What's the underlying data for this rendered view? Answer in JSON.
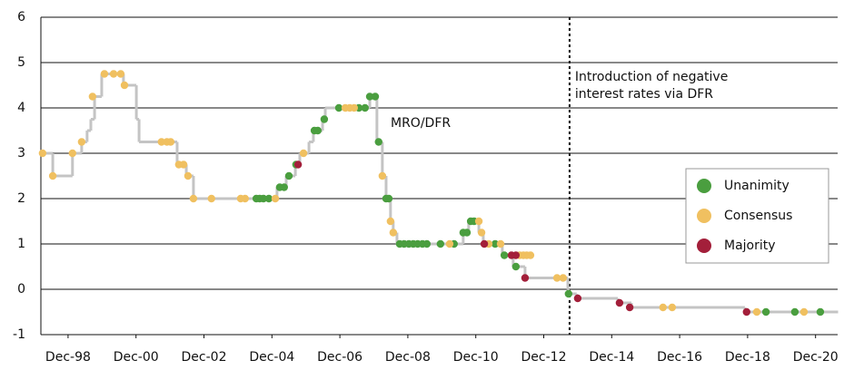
{
  "chart_data": {
    "type": "line",
    "annotation": [
      "Introduction of negative",
      "interest rates via DFR"
    ],
    "annotation_x": 2013.68,
    "xlim": [
      1998.12,
      2021.57
    ],
    "ylim": [
      -1,
      6
    ],
    "yticks": [
      -1,
      0,
      1,
      2,
      3,
      4,
      5,
      6
    ],
    "xticks": [
      {
        "value": 1998.92,
        "label": "Dec-98"
      },
      {
        "value": 2000.92,
        "label": "Dec-00"
      },
      {
        "value": 2002.92,
        "label": "Dec-02"
      },
      {
        "value": 2004.92,
        "label": "Dec-04"
      },
      {
        "value": 2006.92,
        "label": "Dec-06"
      },
      {
        "value": 2008.92,
        "label": "Dec-08"
      },
      {
        "value": 2010.92,
        "label": "Dec-10"
      },
      {
        "value": 2012.92,
        "label": "Dec-12"
      },
      {
        "value": 2014.92,
        "label": "Dec-14"
      },
      {
        "value": 2016.92,
        "label": "Dec-16"
      },
      {
        "value": 2018.92,
        "label": "Dec-18"
      },
      {
        "value": 2020.92,
        "label": "Dec-20"
      }
    ],
    "grid": true,
    "legend": "right",
    "series": [
      {
        "name": "MRO/DFR",
        "type": "line",
        "color": "#c4c4c4",
        "x": [
          1998.12,
          1998.47,
          1999.05,
          1999.32,
          1999.48,
          1999.59,
          1999.7,
          1999.91,
          2000.55,
          2000.93,
          2001.01,
          2002.13,
          2002.4,
          2002.61,
          2005.07,
          2005.34,
          2005.61,
          2005.74,
          2006.01,
          2006.14,
          2006.41,
          2006.49,
          2007.8,
          2008.01,
          2008.17,
          2008.28,
          2008.41,
          2008.49,
          2008.6,
          2010.55,
          2010.71,
          2011.01,
          2011.14,
          2011.7,
          2012.02,
          2012.37,
          2013.63,
          2013.65,
          2013.89,
          2015.1,
          2015.5,
          2018.84,
          2021.57
        ],
        "values": [
          3,
          2.5,
          3,
          3.25,
          3.5,
          3.75,
          4.25,
          4.75,
          4.5,
          3.75,
          3.25,
          2.75,
          2.5,
          2,
          2.25,
          2.5,
          2.75,
          3,
          3.25,
          3.5,
          3.75,
          4,
          4.25,
          3.25,
          2.5,
          2,
          1.5,
          1.25,
          1,
          1.25,
          1.5,
          1.25,
          1,
          0.75,
          0.5,
          0.25,
          0,
          -0.1,
          -0.2,
          -0.3,
          -0.4,
          -0.5,
          -0.5
        ]
      },
      {
        "name": "Unanimity",
        "type": "scatter",
        "color": "#4a9e3f",
        "x": [
          2004.46,
          2004.56,
          2004.67,
          2004.83,
          2005.15,
          2005.28,
          2005.42,
          2005.63,
          2006.17,
          2006.27,
          2006.46,
          2006.89,
          2007.48,
          2007.66,
          2007.8,
          2007.96,
          2008.06,
          2008.28,
          2008.36,
          2008.68,
          2008.81,
          2008.95,
          2009.08,
          2009.21,
          2009.35,
          2009.48,
          2009.88,
          2010.28,
          2010.55,
          2010.66,
          2010.77,
          2010.87,
          2011.49,
          2011.76,
          2012.1,
          2013.65,
          2019.46,
          2020.31,
          2021.06
        ],
        "values": [
          2,
          2,
          2,
          2,
          2.25,
          2.25,
          2.5,
          2.75,
          3.5,
          3.5,
          3.75,
          4,
          4,
          4,
          4.25,
          4.25,
          3.25,
          2,
          2,
          1,
          1,
          1,
          1,
          1,
          1,
          1,
          1,
          1,
          1.25,
          1.25,
          1.5,
          1.5,
          1,
          0.75,
          0.5,
          -0.1,
          -0.5,
          -0.5,
          -0.5
        ]
      },
      {
        "name": "Consensus",
        "type": "scatter",
        "color": "#f0c060",
        "x": [
          1998.17,
          1998.47,
          1999.05,
          1999.32,
          1999.64,
          1999.99,
          2000.26,
          2000.47,
          2000.58,
          2001.67,
          2001.83,
          2001.94,
          2002.18,
          2002.32,
          2002.45,
          2002.61,
          2003.14,
          2004.0,
          2004.13,
          2005.02,
          2005.85,
          2007.08,
          2007.21,
          2007.34,
          2008.17,
          2008.41,
          2008.49,
          2010.15,
          2011.01,
          2011.09,
          2011.3,
          2011.65,
          2012.21,
          2012.32,
          2012.42,
          2012.53,
          2013.31,
          2013.49,
          2016.43,
          2016.7,
          2019.19,
          2020.58
        ],
        "values": [
          3,
          2.5,
          3,
          3.25,
          4.25,
          4.75,
          4.75,
          4.75,
          4.5,
          3.25,
          3.25,
          3.25,
          2.75,
          2.75,
          2.5,
          2,
          2,
          2,
          2,
          2,
          3,
          4,
          4,
          4,
          2.5,
          1.5,
          1.25,
          1,
          1.5,
          1.25,
          1,
          1,
          0.75,
          0.75,
          0.75,
          0.75,
          0.25,
          0.25,
          -0.4,
          -0.4,
          -0.5,
          -0.5
        ]
      },
      {
        "name": "Majority",
        "type": "scatter",
        "color": "#a31f3a",
        "x": [
          2005.69,
          2011.17,
          2011.97,
          2012.1,
          2012.37,
          2013.92,
          2015.15,
          2015.45,
          2018.89
        ],
        "values": [
          2.75,
          1,
          0.75,
          0.75,
          0.25,
          -0.2,
          -0.3,
          -0.4,
          -0.5
        ]
      }
    ]
  }
}
